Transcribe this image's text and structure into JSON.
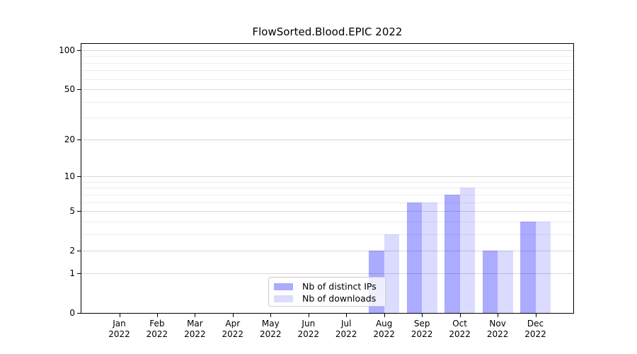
{
  "title": "FlowSorted.Blood.EPIC 2022",
  "chart_data": {
    "type": "bar",
    "title": "FlowSorted.Blood.EPIC 2022",
    "x_categories": [
      "Jan",
      "Feb",
      "Mar",
      "Apr",
      "May",
      "Jun",
      "Jul",
      "Aug",
      "Sep",
      "Oct",
      "Nov",
      "Dec"
    ],
    "x_year_label": "2022",
    "series": [
      {
        "name": "Nb of distinct IPs",
        "color": "#0000FF54",
        "values": [
          0,
          0,
          0,
          0,
          0,
          0,
          0,
          2,
          6,
          7,
          2,
          4
        ]
      },
      {
        "name": "Nb of downloads",
        "color": "#0000FF24",
        "values": [
          0,
          0,
          0,
          0,
          0,
          0,
          0,
          3,
          6,
          8,
          2,
          4
        ]
      }
    ],
    "yscale": "log1p",
    "ylim": [
      0,
      112
    ],
    "yticks": [
      0,
      1,
      2,
      5,
      10,
      20,
      50,
      100
    ],
    "minor_gridlines": [
      3,
      4,
      6,
      7,
      8,
      9,
      30,
      40,
      60,
      70,
      80,
      90
    ],
    "grid": true,
    "legend_position": "lower center, inside plot",
    "colors": {
      "bar_distinct_ips": "#0000FF54",
      "bar_downloads": "#0000FF24",
      "grid_major": "#d8d8d8",
      "grid_minor": "#ededed",
      "axis": "#000000",
      "legend_border": "#cccccc"
    }
  }
}
